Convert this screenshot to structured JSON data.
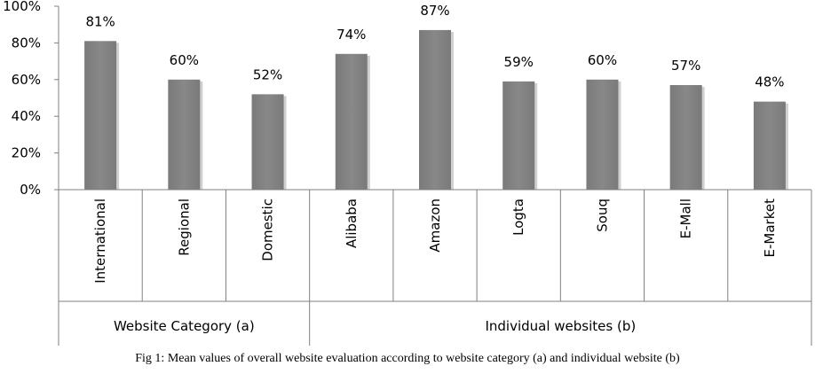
{
  "chart_data": {
    "type": "bar",
    "categories": [
      "International",
      "Regional",
      "Domestic",
      "Alibaba",
      "Amazon",
      "Logta",
      "Souq",
      "E-Mall",
      "E-Market"
    ],
    "values": [
      81,
      60,
      52,
      74,
      87,
      59,
      60,
      57,
      48
    ],
    "data_labels": [
      "81%",
      "60%",
      "52%",
      "74%",
      "87%",
      "59%",
      "60%",
      "57%",
      "48%"
    ],
    "groups": [
      {
        "label": "Website Category (a)",
        "count": 3
      },
      {
        "label": "Individual websites (b)",
        "count": 6
      }
    ],
    "ylim": [
      0,
      100
    ],
    "yticks": [
      "0%",
      "20%",
      "40%",
      "60%",
      "80%",
      "100%"
    ],
    "bar_color": "#808080",
    "grid": false,
    "legend": "none"
  },
  "caption": "Fig 1: Mean values of overall website evaluation according to website category (a) and individual website (b)"
}
